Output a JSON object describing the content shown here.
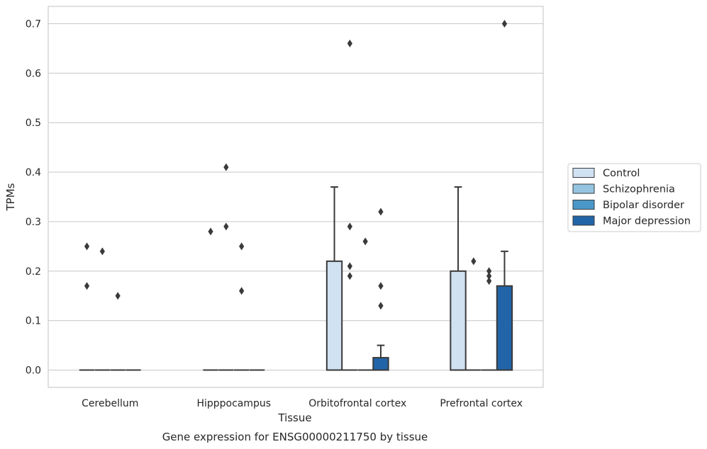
{
  "chart_data": {
    "type": "box",
    "caption": "Gene expression for ENSG00000211750 by tissue",
    "xlabel": "Tissue",
    "ylabel": "TPMs",
    "ylim": [
      -0.035,
      0.735
    ],
    "yticks": [
      "0.0",
      "0.1",
      "0.2",
      "0.3",
      "0.4",
      "0.5",
      "0.6",
      "0.7"
    ],
    "grid": "horizontal",
    "legend_position": "right",
    "categories": [
      "Cerebellum",
      "Hipppocampus",
      "Orbitofrontal cortex",
      "Prefrontal cortex"
    ],
    "series": [
      {
        "name": "Control",
        "color": "#d0e1f2",
        "boxes": [
          {
            "q1": 0,
            "median": 0,
            "q3": 0,
            "whisker_low": 0,
            "whisker_high": 0,
            "outliers": [
              0.25,
              0.17
            ]
          },
          {
            "q1": 0,
            "median": 0,
            "q3": 0,
            "whisker_low": 0,
            "whisker_high": 0,
            "outliers": [
              0.28
            ]
          },
          {
            "q1": 0,
            "median": 0,
            "q3": 0.22,
            "whisker_low": 0,
            "whisker_high": 0.37,
            "outliers": []
          },
          {
            "q1": 0,
            "median": 0,
            "q3": 0.2,
            "whisker_low": 0,
            "whisker_high": 0.37,
            "outliers": []
          }
        ]
      },
      {
        "name": "Schizophrenia",
        "color": "#94c4df",
        "boxes": [
          {
            "q1": 0,
            "median": 0,
            "q3": 0,
            "whisker_low": 0,
            "whisker_high": 0,
            "outliers": [
              0.24
            ]
          },
          {
            "q1": 0,
            "median": 0,
            "q3": 0,
            "whisker_low": 0,
            "whisker_high": 0,
            "outliers": [
              0.41,
              0.29
            ]
          },
          {
            "q1": 0,
            "median": 0,
            "q3": 0,
            "whisker_low": 0,
            "whisker_high": 0,
            "outliers": [
              0.66,
              0.29,
              0.21,
              0.19
            ]
          },
          {
            "q1": 0,
            "median": 0,
            "q3": 0,
            "whisker_low": 0,
            "whisker_high": 0,
            "outliers": [
              0.22
            ]
          }
        ]
      },
      {
        "name": "Bipolar disorder",
        "color": "#4a98c9",
        "boxes": [
          {
            "q1": 0,
            "median": 0,
            "q3": 0,
            "whisker_low": 0,
            "whisker_high": 0,
            "outliers": [
              0.15
            ]
          },
          {
            "q1": 0,
            "median": 0,
            "q3": 0,
            "whisker_low": 0,
            "whisker_high": 0,
            "outliers": [
              0.25,
              0.16
            ]
          },
          {
            "q1": 0,
            "median": 0,
            "q3": 0,
            "whisker_low": 0,
            "whisker_high": 0,
            "outliers": [
              0.26
            ]
          },
          {
            "q1": 0,
            "median": 0,
            "q3": 0,
            "whisker_low": 0,
            "whisker_high": 0,
            "outliers": [
              0.2,
              0.19,
              0.18
            ]
          }
        ]
      },
      {
        "name": "Major depression",
        "color": "#2264a8",
        "boxes": [
          {
            "q1": 0,
            "median": 0,
            "q3": 0,
            "whisker_low": 0,
            "whisker_high": 0,
            "outliers": []
          },
          {
            "q1": 0,
            "median": 0,
            "q3": 0,
            "whisker_low": 0,
            "whisker_high": 0,
            "outliers": []
          },
          {
            "q1": 0,
            "median": 0,
            "q3": 0.025,
            "whisker_low": 0,
            "whisker_high": 0.05,
            "outliers": [
              0.32,
              0.17,
              0.13
            ]
          },
          {
            "q1": 0,
            "median": 0,
            "q3": 0.17,
            "whisker_low": 0,
            "whisker_high": 0.24,
            "outliers": [
              0.7
            ]
          }
        ]
      }
    ]
  }
}
